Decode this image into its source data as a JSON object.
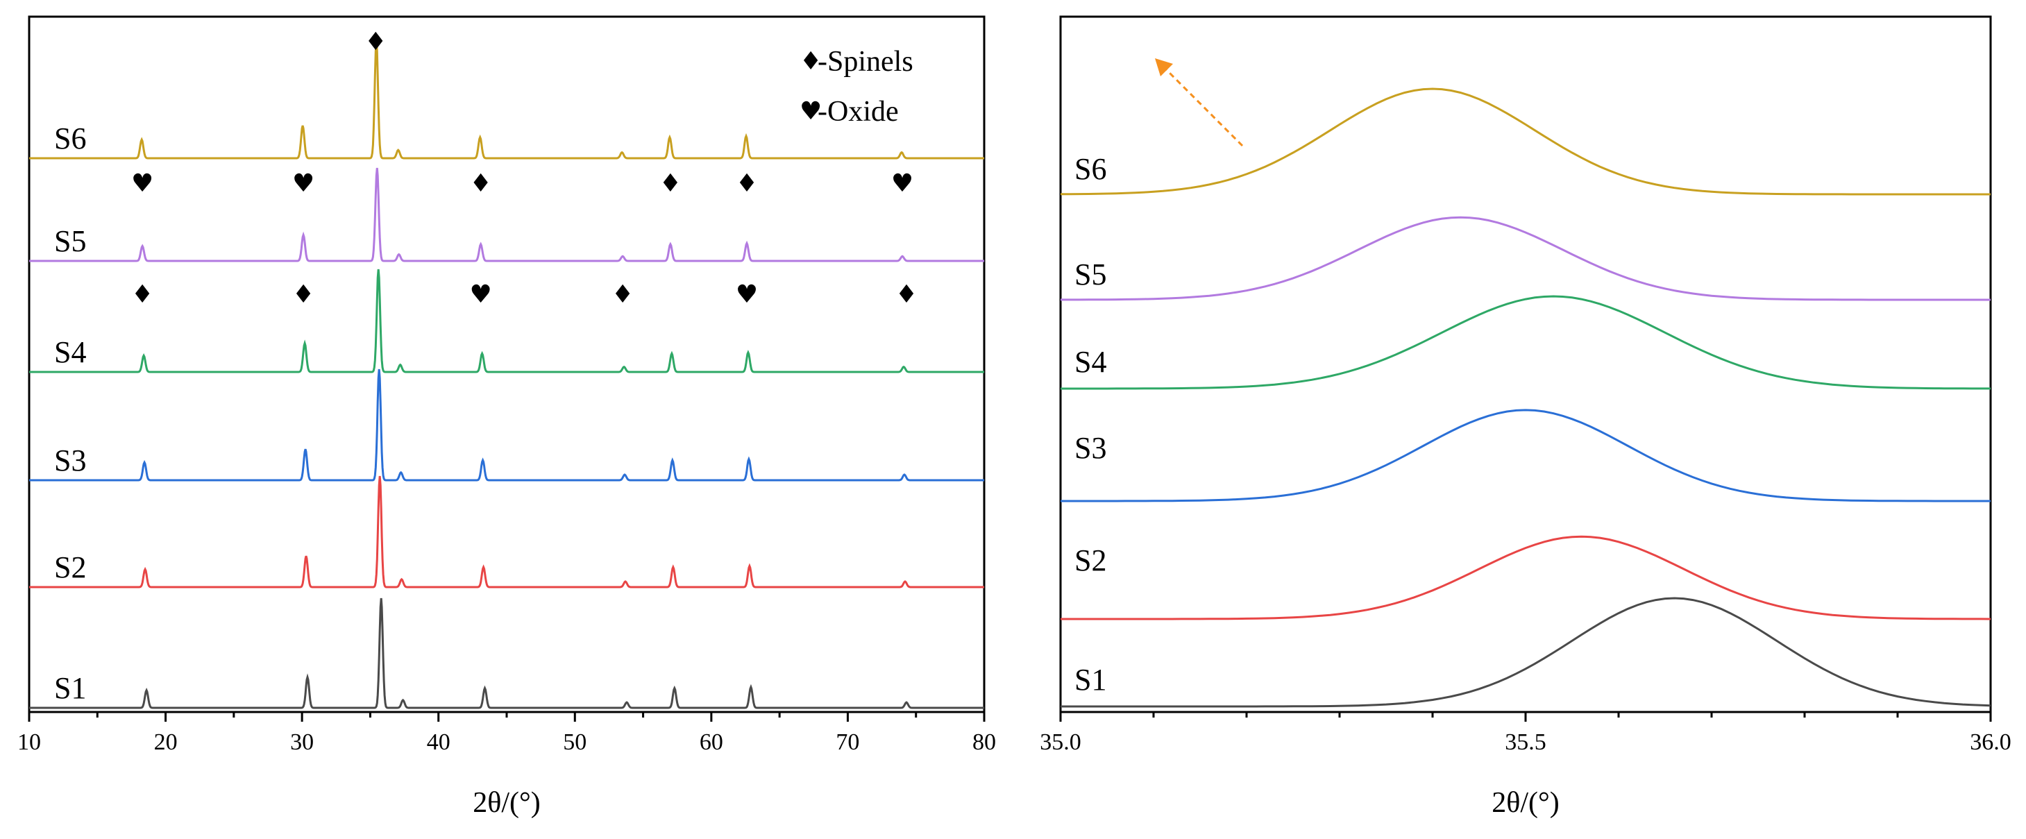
{
  "colors": {
    "S1": "#4a4a4a",
    "S2": "#e84545",
    "S3": "#2a6fd6",
    "S4": "#2ea866",
    "S5": "#b27ae0",
    "S6": "#c8a020",
    "arrow": "#f5901e"
  },
  "legend": {
    "spinel_symbol": "♦",
    "spinel_label": "-Spinels",
    "oxide_symbol": "♥",
    "oxide_label": "-Oxide"
  },
  "chart_data": [
    {
      "type": "line",
      "panel": "left",
      "xlabel": "2θ/(°)",
      "ylabel": "",
      "xlim": [
        10,
        80
      ],
      "xticks": [
        10,
        20,
        30,
        40,
        50,
        60,
        70,
        80
      ],
      "grid": false,
      "legend_position": "top-right",
      "peak_positions": [
        18.3,
        30.1,
        35.5,
        37.1,
        43.1,
        53.5,
        57.0,
        62.6,
        74.0
      ],
      "peak_heights": [
        0.16,
        0.28,
        1.0,
        0.07,
        0.18,
        0.05,
        0.18,
        0.19,
        0.05
      ],
      "series": [
        {
          "name": "S1",
          "shift": 0.3
        },
        {
          "name": "S2",
          "shift": 0.2
        },
        {
          "name": "S3",
          "shift": 0.15
        },
        {
          "name": "S4",
          "shift": 0.1
        },
        {
          "name": "S5",
          "shift": 0.0
        },
        {
          "name": "S6",
          "shift": -0.05
        }
      ],
      "annotations": [
        {
          "series": "S6",
          "x": 35.4,
          "symbol": "♦"
        },
        {
          "series": "S5",
          "x": 18.3,
          "symbol": "♥"
        },
        {
          "series": "S5",
          "x": 30.1,
          "symbol": "♥"
        },
        {
          "series": "S5",
          "x": 43.1,
          "symbol": "♦"
        },
        {
          "series": "S5",
          "x": 57.0,
          "symbol": "♦"
        },
        {
          "series": "S5",
          "x": 62.6,
          "symbol": "♦"
        },
        {
          "series": "S5",
          "x": 74.0,
          "symbol": "♥"
        },
        {
          "series": "S4",
          "x": 18.3,
          "symbol": "♦"
        },
        {
          "series": "S4",
          "x": 30.1,
          "symbol": "♦"
        },
        {
          "series": "S4",
          "x": 43.1,
          "symbol": "♥"
        },
        {
          "series": "S4",
          "x": 53.5,
          "symbol": "♦"
        },
        {
          "series": "S4",
          "x": 62.6,
          "symbol": "♥"
        },
        {
          "series": "S4",
          "x": 74.3,
          "symbol": "♦"
        }
      ]
    },
    {
      "type": "line",
      "panel": "right",
      "xlabel": "2θ/(°)",
      "ylabel": "",
      "xlim": [
        35.0,
        36.0
      ],
      "xticks": [
        "35.0",
        "35.5",
        "36.0"
      ],
      "grid": false,
      "series": [
        {
          "name": "S1",
          "peak": 35.66,
          "width": 0.11,
          "height": 1.0
        },
        {
          "name": "S2",
          "peak": 35.56,
          "width": 0.11,
          "height": 0.9
        },
        {
          "name": "S3",
          "peak": 35.5,
          "width": 0.11,
          "height": 0.95
        },
        {
          "name": "S4",
          "peak": 35.53,
          "width": 0.12,
          "height": 0.95
        },
        {
          "name": "S5",
          "peak": 35.43,
          "width": 0.11,
          "height": 0.9
        },
        {
          "name": "S6",
          "peak": 35.4,
          "width": 0.11,
          "height": 1.0
        }
      ]
    }
  ]
}
